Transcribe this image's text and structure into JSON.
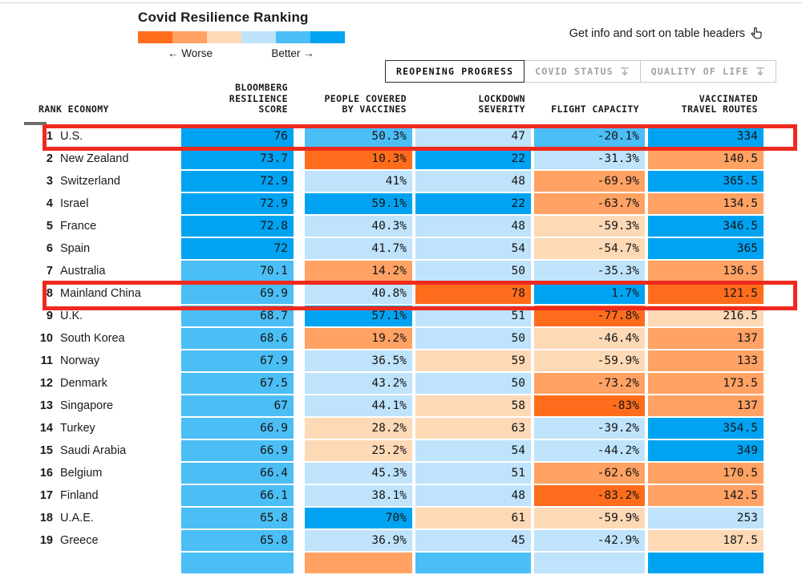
{
  "header": {
    "title": "Covid Resilience Ranking",
    "legend": {
      "worse_label": "← Worse",
      "better_label": "Better →",
      "colors": [
        "#ff6d1c",
        "#ffa263",
        "#fed9b6",
        "#bfe3fb",
        "#4bbef5",
        "#00a3f2"
      ]
    },
    "info_text": "Get info and sort on table headers",
    "tabs": [
      {
        "label": "REOPENING PROGRESS",
        "active": true
      },
      {
        "label": "COVID STATUS",
        "active": false
      },
      {
        "label": "QUALITY OF LIFE",
        "active": false
      }
    ]
  },
  "palette": {
    "o3": "#ff6d1c",
    "o2": "#ffa263",
    "o1": "#fed9b6",
    "b1": "#bfe3fb",
    "b2": "#4bbef5",
    "b3": "#00a3f2"
  },
  "table": {
    "columns": [
      {
        "key": "rank_economy",
        "label": "RANK ECONOMY"
      },
      {
        "key": "score",
        "label": "BLOOMBERG\nRESILIENCE\nSCORE"
      },
      {
        "key": "vaccines",
        "label": "PEOPLE COVERED\nBY VACCINES"
      },
      {
        "key": "lockdown",
        "label": "LOCKDOWN\nSEVERITY"
      },
      {
        "key": "flight",
        "label": "FLIGHT CAPACITY"
      },
      {
        "key": "routes",
        "label": "VACCINATED\nTRAVEL ROUTES"
      }
    ],
    "rows": [
      {
        "rank": "1",
        "economy": "U.S.",
        "cells": [
          [
            "76",
            "b3"
          ],
          [
            "50.3%",
            "b2"
          ],
          [
            "47",
            "b1"
          ],
          [
            "-20.1%",
            "b2"
          ],
          [
            "334",
            "b3"
          ]
        ]
      },
      {
        "rank": "2",
        "economy": "New Zealand",
        "cells": [
          [
            "73.7",
            "b3"
          ],
          [
            "10.3%",
            "o3"
          ],
          [
            "22",
            "b3"
          ],
          [
            "-31.3%",
            "b1"
          ],
          [
            "140.5",
            "o2"
          ]
        ]
      },
      {
        "rank": "3",
        "economy": "Switzerland",
        "cells": [
          [
            "72.9",
            "b3"
          ],
          [
            "41%",
            "b1"
          ],
          [
            "48",
            "b1"
          ],
          [
            "-69.9%",
            "o2"
          ],
          [
            "365.5",
            "b3"
          ]
        ]
      },
      {
        "rank": "4",
        "economy": "Israel",
        "cells": [
          [
            "72.9",
            "b3"
          ],
          [
            "59.1%",
            "b3"
          ],
          [
            "22",
            "b3"
          ],
          [
            "-63.7%",
            "o2"
          ],
          [
            "134.5",
            "o2"
          ]
        ]
      },
      {
        "rank": "5",
        "economy": "France",
        "cells": [
          [
            "72.8",
            "b3"
          ],
          [
            "40.3%",
            "b1"
          ],
          [
            "48",
            "b1"
          ],
          [
            "-59.3%",
            "o1"
          ],
          [
            "346.5",
            "b3"
          ]
        ]
      },
      {
        "rank": "6",
        "economy": "Spain",
        "cells": [
          [
            "72",
            "b3"
          ],
          [
            "41.7%",
            "b1"
          ],
          [
            "54",
            "b1"
          ],
          [
            "-54.7%",
            "o1"
          ],
          [
            "365",
            "b3"
          ]
        ]
      },
      {
        "rank": "7",
        "economy": "Australia",
        "cells": [
          [
            "70.1",
            "b2"
          ],
          [
            "14.2%",
            "o2"
          ],
          [
            "50",
            "b1"
          ],
          [
            "-35.3%",
            "b1"
          ],
          [
            "136.5",
            "o2"
          ]
        ]
      },
      {
        "rank": "8",
        "economy": "Mainland China",
        "cells": [
          [
            "69.9",
            "b2"
          ],
          [
            "40.8%",
            "b1"
          ],
          [
            "78",
            "o3"
          ],
          [
            "1.7%",
            "b3"
          ],
          [
            "121.5",
            "o3"
          ]
        ]
      },
      {
        "rank": "9",
        "economy": "U.K.",
        "cells": [
          [
            "68.7",
            "b2"
          ],
          [
            "57.1%",
            "b3"
          ],
          [
            "51",
            "b1"
          ],
          [
            "-77.8%",
            "o3"
          ],
          [
            "216.5",
            "o1"
          ]
        ]
      },
      {
        "rank": "10",
        "economy": "South Korea",
        "cells": [
          [
            "68.6",
            "b2"
          ],
          [
            "19.2%",
            "o2"
          ],
          [
            "50",
            "b1"
          ],
          [
            "-46.4%",
            "o1"
          ],
          [
            "137",
            "o2"
          ]
        ]
      },
      {
        "rank": "11",
        "economy": "Norway",
        "cells": [
          [
            "67.9",
            "b2"
          ],
          [
            "36.5%",
            "b1"
          ],
          [
            "59",
            "o1"
          ],
          [
            "-59.9%",
            "o1"
          ],
          [
            "133",
            "o2"
          ]
        ]
      },
      {
        "rank": "12",
        "economy": "Denmark",
        "cells": [
          [
            "67.5",
            "b2"
          ],
          [
            "43.2%",
            "b1"
          ],
          [
            "50",
            "b1"
          ],
          [
            "-73.2%",
            "o2"
          ],
          [
            "173.5",
            "o2"
          ]
        ]
      },
      {
        "rank": "13",
        "economy": "Singapore",
        "cells": [
          [
            "67",
            "b2"
          ],
          [
            "44.1%",
            "b1"
          ],
          [
            "58",
            "o1"
          ],
          [
            "-83%",
            "o3"
          ],
          [
            "137",
            "o2"
          ]
        ]
      },
      {
        "rank": "14",
        "economy": "Turkey",
        "cells": [
          [
            "66.9",
            "b2"
          ],
          [
            "28.2%",
            "o1"
          ],
          [
            "63",
            "o1"
          ],
          [
            "-39.2%",
            "b1"
          ],
          [
            "354.5",
            "b3"
          ]
        ]
      },
      {
        "rank": "15",
        "economy": "Saudi Arabia",
        "cells": [
          [
            "66.9",
            "b2"
          ],
          [
            "25.2%",
            "o1"
          ],
          [
            "54",
            "b1"
          ],
          [
            "-44.2%",
            "b1"
          ],
          [
            "349",
            "b3"
          ]
        ]
      },
      {
        "rank": "16",
        "economy": "Belgium",
        "cells": [
          [
            "66.4",
            "b2"
          ],
          [
            "45.3%",
            "b1"
          ],
          [
            "51",
            "b1"
          ],
          [
            "-62.6%",
            "o2"
          ],
          [
            "170.5",
            "o2"
          ]
        ]
      },
      {
        "rank": "17",
        "economy": "Finland",
        "cells": [
          [
            "66.1",
            "b2"
          ],
          [
            "38.1%",
            "b1"
          ],
          [
            "48",
            "b1"
          ],
          [
            "-83.2%",
            "o3"
          ],
          [
            "142.5",
            "o2"
          ]
        ]
      },
      {
        "rank": "18",
        "economy": "U.A.E.",
        "cells": [
          [
            "65.8",
            "b2"
          ],
          [
            "70%",
            "b3"
          ],
          [
            "61",
            "o1"
          ],
          [
            "-59.9%",
            "o1"
          ],
          [
            "253",
            "b1"
          ]
        ]
      },
      {
        "rank": "19",
        "economy": "Greece",
        "cells": [
          [
            "65.8",
            "b2"
          ],
          [
            "36.9%",
            "b1"
          ],
          [
            "45",
            "b1"
          ],
          [
            "-42.9%",
            "b1"
          ],
          [
            "187.5",
            "o1"
          ]
        ]
      }
    ],
    "partial_row_colors": [
      "b2",
      "o2",
      "b2",
      "b1",
      "b3"
    ]
  },
  "annotations": {
    "highlight_color": "#ee2a1e",
    "highlighted_ranks": [
      "1",
      "8"
    ]
  }
}
